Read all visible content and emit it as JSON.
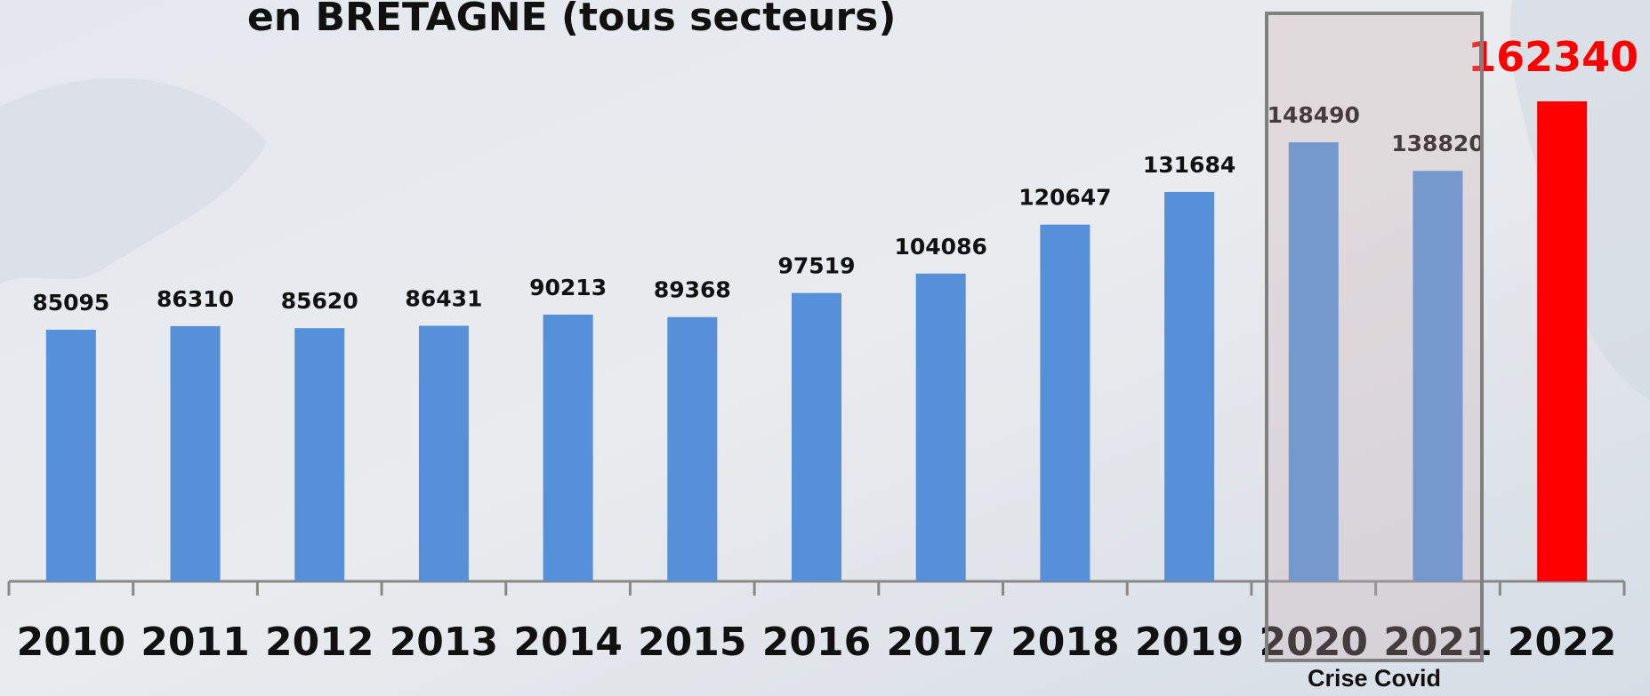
{
  "chart_data": {
    "type": "bar",
    "title": "en BRETAGNE (tous secteurs)",
    "categories": [
      "2010",
      "2011",
      "2012",
      "2013",
      "2014",
      "2015",
      "2016",
      "2017",
      "2018",
      "2019",
      "2020",
      "2021",
      "2022"
    ],
    "values": [
      85095,
      86310,
      85620,
      86431,
      90213,
      89368,
      97519,
      104086,
      120647,
      131684,
      148490,
      138820,
      162340
    ],
    "colors": [
      "#5590d8",
      "#5590d8",
      "#5590d8",
      "#5590d8",
      "#5590d8",
      "#5590d8",
      "#5590d8",
      "#5590d8",
      "#5590d8",
      "#5590d8",
      "#5590d8",
      "#5590d8",
      "#ff0000"
    ],
    "annotation": "Crise Covid"
  }
}
